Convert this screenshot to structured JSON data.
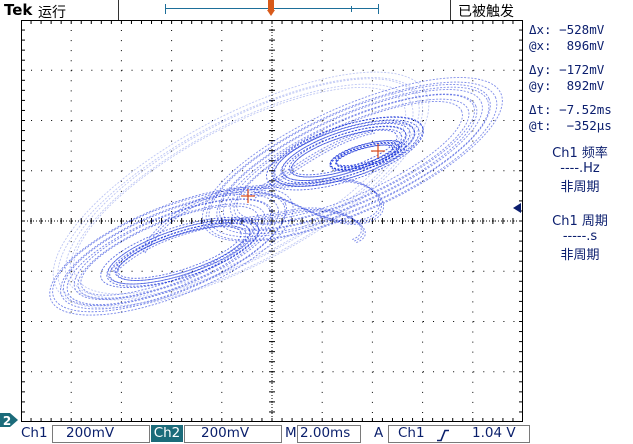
{
  "header": {
    "brand": "Tek",
    "run_status": "运行",
    "trigger_status": "已被触发",
    "trigger_flag": "T"
  },
  "cursors": {
    "dx_label": "Δx:",
    "dx_value": "−528mV",
    "ax_label": "@x:",
    "ax_value": "896mV",
    "dy_label": "Δy:",
    "dy_value": "−172mV",
    "ay_label": "@y:",
    "ay_value": "892mV",
    "dt_label": "Δt:",
    "dt_value": "−7.52ms",
    "at_label": "@t:",
    "at_value": "−352µs"
  },
  "measurements": [
    {
      "title": "Ch1 频率",
      "value": "----.Hz",
      "note": "非周期"
    },
    {
      "title": "Ch1 周期",
      "value": "-----.s",
      "note": "非周期"
    }
  ],
  "status_bar": {
    "ch1_label": "Ch1",
    "ch1_scale": "200mV",
    "ch2_label": "Ch2",
    "ch2_scale": "200mV",
    "timebase_label": "M",
    "timebase_value": "2.00ms",
    "trigger_mode": "A",
    "trigger_source": "Ch1",
    "trigger_slope_icon": "rising-edge-icon",
    "trigger_level": "1.04 V"
  },
  "ch2_marker": "2",
  "colors": {
    "trace": "#1530d8",
    "trace_light": "#6f83e6",
    "cursor": "#d84a1a",
    "graticule": "#000000",
    "text": "#0b1e6e",
    "ch2_accent": "#1b6b7a"
  }
}
